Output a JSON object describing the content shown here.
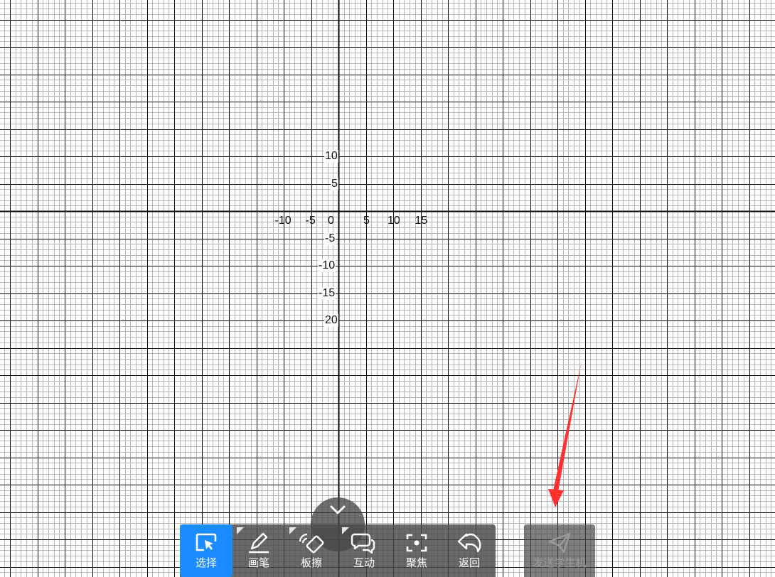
{
  "graph": {
    "x_tick_labels": [
      "-10",
      "-5",
      "0",
      "5",
      "10",
      "15"
    ],
    "y_tick_labels": [
      "10",
      "5",
      "-5",
      "-10",
      "-15",
      "20"
    ],
    "grid_minor_color": "#b4b4b4",
    "grid_major_color": "#000000"
  },
  "toolbar": {
    "tools": [
      {
        "name": "select",
        "label": "选择",
        "icon": "cursor-select-icon",
        "active": true,
        "has_menu": false
      },
      {
        "name": "pen",
        "label": "画笔",
        "icon": "pen-icon",
        "active": false,
        "has_menu": true
      },
      {
        "name": "eraser",
        "label": "板擦",
        "icon": "eraser-icon",
        "active": false,
        "has_menu": true
      },
      {
        "name": "interact",
        "label": "互动",
        "icon": "chat-bubbles-icon",
        "active": false,
        "has_menu": true
      },
      {
        "name": "focus",
        "label": "聚焦",
        "icon": "focus-icon",
        "active": false,
        "has_menu": false
      },
      {
        "name": "back",
        "label": "返回",
        "icon": "undo-arrow-icon",
        "active": false,
        "has_menu": false
      }
    ],
    "active_color": "#1a8cff",
    "collapse_icon": "chevron-down-icon"
  },
  "send": {
    "label": "发送学生机",
    "icon": "paper-plane-icon",
    "disabled": true
  },
  "annotation": {
    "color": "#ff3030",
    "icon": "red-arrow-annotation"
  }
}
